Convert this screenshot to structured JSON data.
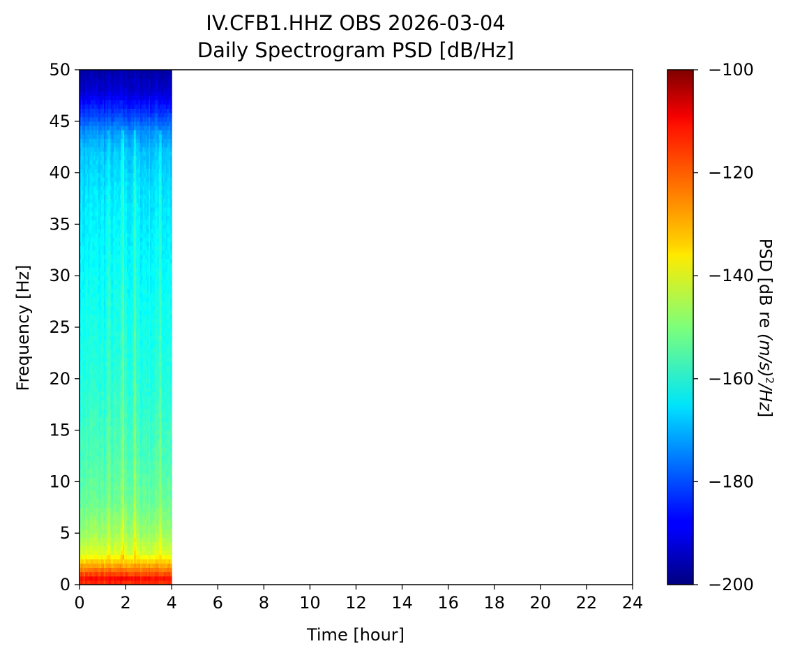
{
  "chart_data": {
    "type": "heatmap",
    "title": "IV.CFB1.HHZ OBS 2026-03-04",
    "subtitle": "Daily Spectrogram PSD [dB/Hz]",
    "xlabel": "Time [hour]",
    "ylabel": "Frequency [Hz]",
    "xlim": [
      0,
      24
    ],
    "ylim": [
      0,
      50
    ],
    "x_ticks": [
      0,
      2,
      4,
      6,
      8,
      10,
      12,
      14,
      16,
      18,
      20,
      22,
      24
    ],
    "y_ticks": [
      0,
      5,
      10,
      15,
      20,
      25,
      30,
      35,
      40,
      45,
      50
    ],
    "data_extent_hours": [
      0,
      4
    ],
    "colorbar": {
      "label": "PSD [dB re (m/s)²/Hz]",
      "label_prefix": "PSD [dB re ",
      "label_math": "(m/s)",
      "label_sup": "2",
      "label_math_end": "/Hz",
      "label_suffix": "]",
      "range": [
        -200,
        -100
      ],
      "ticks": [
        -100,
        -120,
        -140,
        -160,
        -180,
        -200
      ],
      "tick_labels": [
        "−100",
        "−120",
        "−140",
        "−160",
        "−180",
        "−200"
      ],
      "colormap": "jet"
    },
    "psd_profile_by_frequency": [
      {
        "f": 0,
        "psd": -118
      },
      {
        "f": 0.6,
        "psd": -113
      },
      {
        "f": 1.3,
        "psd": -123
      },
      {
        "f": 2.2,
        "psd": -132
      },
      {
        "f": 3,
        "psd": -141
      },
      {
        "f": 5,
        "psd": -147
      },
      {
        "f": 8,
        "psd": -152
      },
      {
        "f": 12,
        "psd": -155
      },
      {
        "f": 20,
        "psd": -159
      },
      {
        "f": 30,
        "psd": -162
      },
      {
        "f": 38,
        "psd": -165
      },
      {
        "f": 42,
        "psd": -168
      },
      {
        "f": 44,
        "psd": -173
      },
      {
        "f": 46,
        "psd": -183
      },
      {
        "f": 48,
        "psd": -192
      },
      {
        "f": 50,
        "psd": -196
      }
    ],
    "bright_time_streaks_hours": [
      {
        "t": 1.9,
        "psd_boost_db": 9
      },
      {
        "t": 2.4,
        "psd_boost_db": 7
      },
      {
        "t": 3.5,
        "psd_boost_db": 8
      },
      {
        "t": 1.25,
        "psd_boost_db": 4
      }
    ]
  }
}
